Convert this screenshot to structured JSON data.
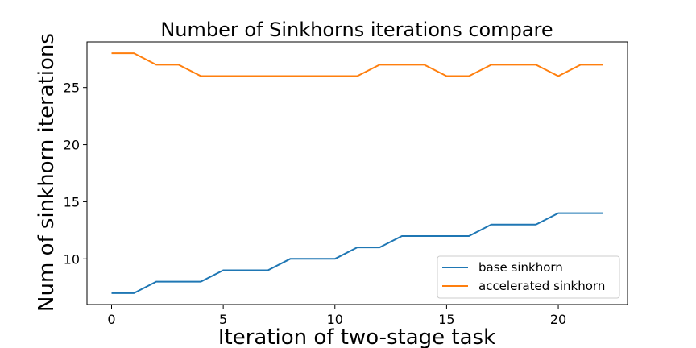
{
  "chart_data": {
    "type": "line",
    "title": "Number of Sinkhorns iterations compare",
    "xlabel": "Iteration of two-stage task",
    "ylabel": "Num of sinkhorn iterations",
    "x": [
      0,
      1,
      2,
      3,
      4,
      5,
      6,
      7,
      8,
      9,
      10,
      11,
      12,
      13,
      14,
      15,
      16,
      17,
      18,
      19,
      20,
      21,
      22
    ],
    "xlim": [
      -1.1,
      23.1
    ],
    "ylim": [
      6.0,
      29.0
    ],
    "xticks": [
      0,
      5,
      10,
      15,
      20
    ],
    "yticks": [
      10,
      15,
      20,
      25
    ],
    "grid": false,
    "legend_position": "lower-right",
    "series": [
      {
        "name": "base sinkhorn",
        "color": "#1f77b4",
        "values": [
          7,
          7,
          8,
          8,
          8,
          9,
          9,
          9,
          10,
          10,
          10,
          11,
          11,
          12,
          12,
          12,
          12,
          13,
          13,
          13,
          14,
          14,
          14
        ]
      },
      {
        "name": "accelerated sinkhorn",
        "color": "#ff7f0e",
        "values": [
          28,
          28,
          27,
          27,
          26,
          26,
          26,
          26,
          26,
          26,
          26,
          26,
          27,
          27,
          27,
          26,
          26,
          27,
          27,
          27,
          26,
          27,
          27
        ]
      }
    ]
  }
}
